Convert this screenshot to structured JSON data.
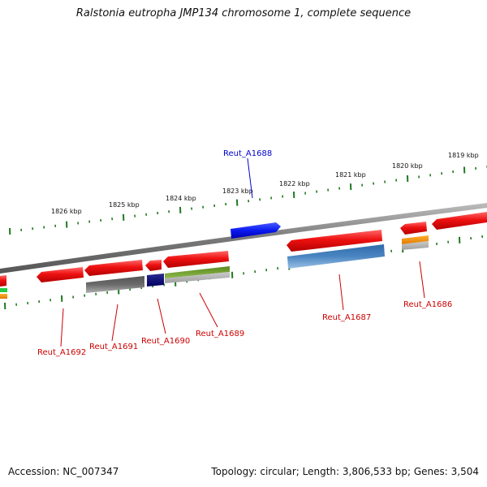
{
  "title": "Ralstonia eutropha JMP134 chromosome 1, complete sequence",
  "footer": {
    "accession": "Accession: NC_007347",
    "summary": "Topology: circular; Length: 3,806,533 bp; Genes: 3,504"
  },
  "scale_labels": [
    "1826 kbp",
    "1825 kbp",
    "1824 kbp",
    "1823 kbp",
    "1822 kbp",
    "1821 kbp",
    "1820 kbp",
    "1819 kbp"
  ],
  "gene_labels": [
    {
      "text": "Reut_A1688",
      "color": "#0000cc"
    },
    {
      "text": "Reut_A1692",
      "color": "#cc0000"
    },
    {
      "text": "Reut_A1691",
      "color": "#cc0000"
    },
    {
      "text": "Reut_A1690",
      "color": "#cc0000"
    },
    {
      "text": "Reut_A1689",
      "color": "#cc0000"
    },
    {
      "text": "Reut_A1687",
      "color": "#cc0000"
    },
    {
      "text": "Reut_A1686",
      "color": "#cc0000"
    }
  ],
  "colors": {
    "backbone": "#888888",
    "cds": "#ee1111",
    "highlight": "#0a1aee",
    "tick": "#1f7a1f",
    "label_line_red": "#cc0000",
    "label_line_blue": "#0000cc"
  }
}
